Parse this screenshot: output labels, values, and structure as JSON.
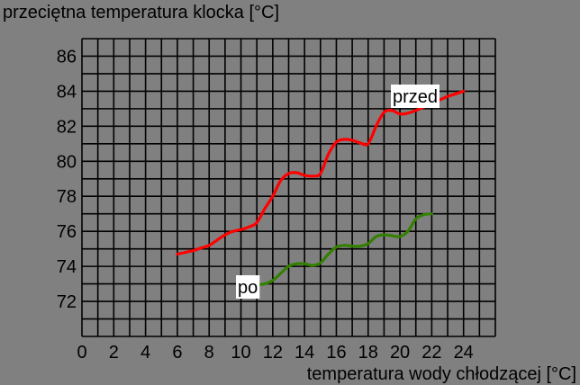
{
  "chart_data": {
    "type": "line",
    "ylabel": "przeciętna temperatura klocka [°C]",
    "xlabel": "temperatura wody chłodzącej [°C]",
    "xlim": [
      0,
      26
    ],
    "ylim": [
      70,
      87
    ],
    "x_ticks": [
      0,
      2,
      4,
      6,
      8,
      10,
      12,
      14,
      16,
      18,
      20,
      22,
      24
    ],
    "y_ticks": [
      72,
      74,
      76,
      78,
      80,
      82,
      84,
      86
    ],
    "grid": true,
    "series": [
      {
        "name": "przed",
        "color": "#ff0000",
        "points": [
          [
            6.0,
            74.7
          ],
          [
            6.5,
            74.8
          ],
          [
            7.0,
            74.9
          ],
          [
            7.5,
            75.05
          ],
          [
            8.0,
            75.2
          ],
          [
            8.5,
            75.5
          ],
          [
            9.0,
            75.8
          ],
          [
            9.5,
            76.0
          ],
          [
            10.0,
            76.1
          ],
          [
            10.5,
            76.25
          ],
          [
            11.0,
            76.5
          ],
          [
            11.5,
            77.3
          ],
          [
            12.0,
            78.0
          ],
          [
            12.5,
            78.9
          ],
          [
            13.0,
            79.3
          ],
          [
            13.5,
            79.35
          ],
          [
            14.0,
            79.2
          ],
          [
            14.5,
            79.15
          ],
          [
            15.0,
            79.3
          ],
          [
            15.5,
            80.4
          ],
          [
            16.0,
            81.1
          ],
          [
            16.5,
            81.25
          ],
          [
            17.0,
            81.2
          ],
          [
            17.5,
            81.05
          ],
          [
            18.0,
            81.0
          ],
          [
            18.5,
            82.0
          ],
          [
            19.0,
            82.8
          ],
          [
            19.5,
            82.9
          ],
          [
            20.0,
            82.7
          ],
          [
            20.5,
            82.75
          ],
          [
            21.0,
            82.9
          ],
          [
            21.5,
            83.1
          ],
          [
            22.0,
            83.3
          ],
          [
            22.5,
            83.5
          ],
          [
            23.0,
            83.7
          ],
          [
            23.5,
            83.85
          ],
          [
            24.0,
            84.0
          ]
        ]
      },
      {
        "name": "po",
        "color": "#338000",
        "points": [
          [
            11.0,
            72.95
          ],
          [
            11.5,
            73.0
          ],
          [
            12.0,
            73.2
          ],
          [
            12.5,
            73.6
          ],
          [
            13.0,
            74.0
          ],
          [
            13.5,
            74.15
          ],
          [
            14.0,
            74.15
          ],
          [
            14.5,
            74.05
          ],
          [
            15.0,
            74.2
          ],
          [
            15.5,
            74.7
          ],
          [
            16.0,
            75.1
          ],
          [
            16.5,
            75.2
          ],
          [
            17.0,
            75.15
          ],
          [
            17.5,
            75.15
          ],
          [
            18.0,
            75.3
          ],
          [
            18.5,
            75.7
          ],
          [
            19.0,
            75.8
          ],
          [
            19.5,
            75.75
          ],
          [
            20.0,
            75.7
          ],
          [
            20.5,
            76.0
          ],
          [
            21.0,
            76.7
          ],
          [
            21.5,
            76.95
          ],
          [
            22.0,
            77.0
          ]
        ]
      }
    ]
  }
}
